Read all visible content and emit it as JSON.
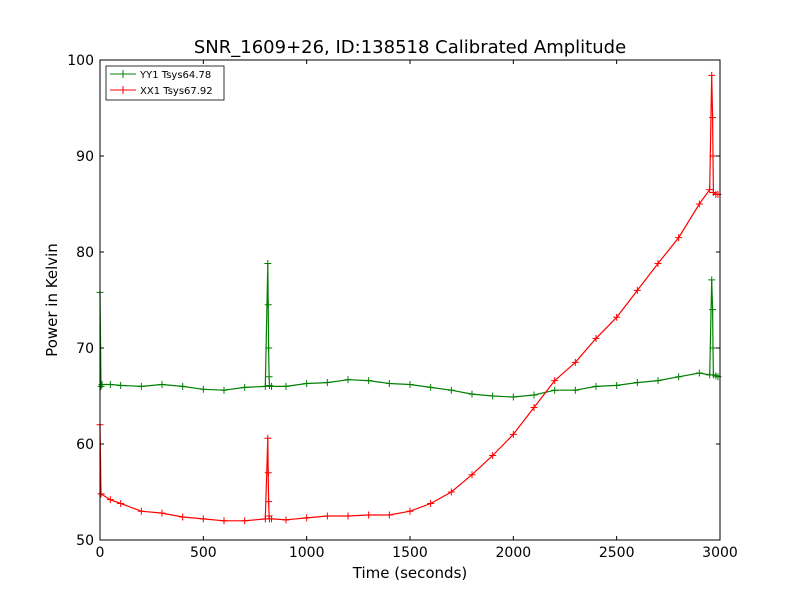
{
  "chart_data": {
    "type": "line",
    "title": "SNR_1609+26, ID:138518 Calibrated Amplitude",
    "xlabel": "Time (seconds)",
    "ylabel": "Power in Kelvin",
    "xlim": [
      0,
      3000
    ],
    "ylim": [
      50,
      100
    ],
    "xticks": [
      0,
      500,
      1000,
      1500,
      2000,
      2500,
      3000
    ],
    "yticks": [
      50,
      60,
      70,
      80,
      90,
      100
    ],
    "grid": false,
    "legend_position": "top-left",
    "marker": "plus",
    "series": [
      {
        "name": "YY1 Tsys64.78",
        "color": "#008000",
        "x": [
          0,
          5,
          10,
          50,
          100,
          200,
          300,
          400,
          500,
          600,
          700,
          800,
          812,
          814,
          816,
          818,
          820,
          830,
          900,
          1000,
          1100,
          1200,
          1300,
          1400,
          1500,
          1600,
          1700,
          1800,
          1900,
          2000,
          2100,
          2200,
          2300,
          2400,
          2500,
          2600,
          2700,
          2800,
          2900,
          2950,
          2960,
          2964,
          2966,
          2968,
          2980,
          2990
        ],
        "y": [
          75.8,
          66.0,
          66.2,
          66.2,
          66.1,
          66.0,
          66.2,
          66.0,
          65.7,
          65.6,
          65.9,
          66.0,
          78.8,
          74.5,
          70.0,
          67.0,
          66.1,
          66.0,
          66.0,
          66.3,
          66.4,
          66.7,
          66.6,
          66.3,
          66.2,
          65.9,
          65.6,
          65.2,
          65.0,
          64.9,
          65.1,
          65.6,
          65.6,
          66.0,
          66.1,
          66.4,
          66.6,
          67.0,
          67.4,
          67.2,
          77.1,
          74.0,
          70.0,
          67.2,
          67.1,
          67.0
        ]
      },
      {
        "name": "XX1 Tsys67.92",
        "color": "#ff0000",
        "x": [
          0,
          5,
          50,
          100,
          200,
          300,
          400,
          500,
          600,
          700,
          800,
          812,
          814,
          816,
          818,
          820,
          830,
          900,
          1000,
          1100,
          1200,
          1300,
          1400,
          1500,
          1600,
          1700,
          1800,
          1900,
          2000,
          2100,
          2200,
          2300,
          2400,
          2500,
          2600,
          2700,
          2800,
          2900,
          2950,
          2960,
          2964,
          2966,
          2968,
          2980,
          2990
        ],
        "y": [
          62.0,
          54.8,
          54.2,
          53.8,
          53.0,
          52.8,
          52.4,
          52.2,
          52.0,
          52.0,
          52.2,
          60.6,
          57.0,
          54.0,
          52.5,
          52.2,
          52.2,
          52.1,
          52.3,
          52.5,
          52.5,
          52.6,
          52.6,
          53.0,
          53.8,
          55.0,
          56.8,
          58.8,
          61.0,
          63.8,
          66.6,
          68.5,
          71.0,
          73.2,
          76.0,
          78.8,
          81.5,
          85.0,
          86.5,
          98.4,
          94.0,
          90.0,
          86.2,
          86.0,
          86.0
        ]
      }
    ]
  }
}
